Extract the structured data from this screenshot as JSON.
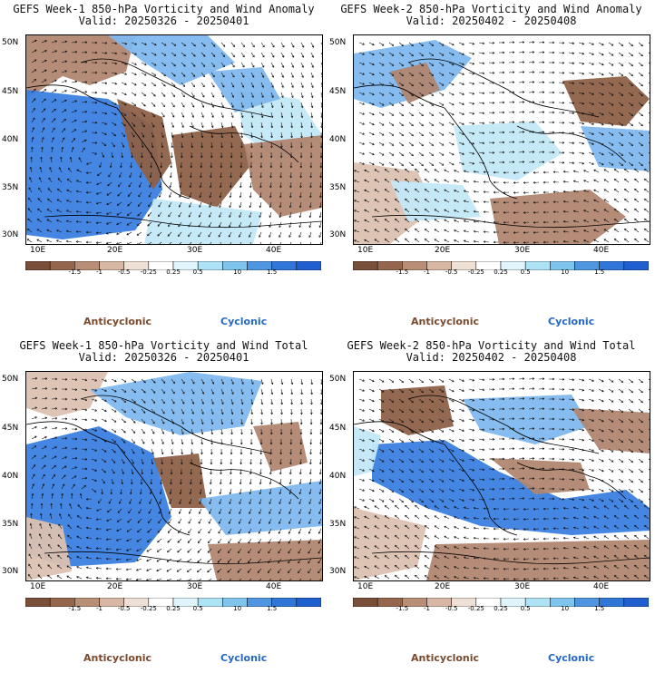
{
  "panels": [
    {
      "title": "GEFS Week-1 850-hPa Vorticity and Wind Anomaly",
      "valid": "Valid: 20250326 - 20250401",
      "field": "anomaly",
      "week": 1
    },
    {
      "title": "GEFS Week-2 850-hPa Vorticity and Wind Anomaly",
      "valid": "Valid: 20250402 - 20250408",
      "field": "anomaly",
      "week": 2
    },
    {
      "title": "GEFS Week-1 850-hPa Vorticity and Wind Total",
      "valid": "Valid: 20250326 - 20250401",
      "field": "total",
      "week": 1
    },
    {
      "title": "GEFS Week-2 850-hPa Vorticity and Wind Total",
      "valid": "Valid: 20250402 - 20250408",
      "field": "total",
      "week": 2
    }
  ],
  "axes": {
    "lat_labels": [
      "50N",
      "45N",
      "40N",
      "35N",
      "30N"
    ],
    "lon_labels": [
      "10E",
      "20E",
      "30E",
      "40E"
    ]
  },
  "colorbar": {
    "ticks": [
      "-1.5",
      "-1",
      "-0.5",
      "-0.25",
      "0.25",
      "0.5",
      "1.5"
    ],
    "unit_label": "10",
    "colors": [
      "#7a4f3a",
      "#95664d",
      "#b88f76",
      "#d8b8a5",
      "#efe0d6",
      "#ffffff",
      "#dff4fb",
      "#aee3f5",
      "#7fc4ec",
      "#4f96e0",
      "#2f76d8",
      "#1f5fcf"
    ]
  },
  "legend": {
    "anticyclonic": "Anticyclonic",
    "cyclonic": "Cyclonic",
    "anticyclonic_color": "#7a4a2e",
    "cyclonic_color": "#2468c8"
  },
  "palette": {
    "blue_strong": "#3a7fe0",
    "blue_mid": "#7fb8ee",
    "blue_light": "#c3e8f8",
    "brown_strong": "#8e6148",
    "brown_mid": "#b08670",
    "brown_light": "#dcc1b0"
  }
}
